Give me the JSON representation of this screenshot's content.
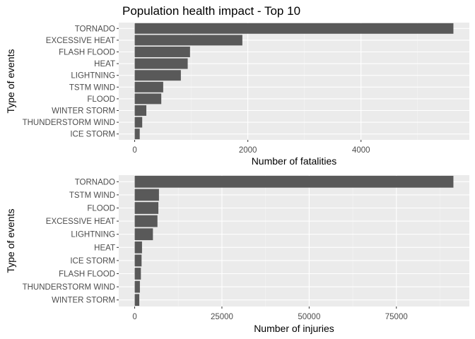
{
  "title": "Population health impact - Top 10",
  "chart_data": [
    {
      "type": "bar",
      "orientation": "horizontal",
      "categories": [
        "TORNADO",
        "EXCESSIVE HEAT",
        "FLASH FLOOD",
        "HEAT",
        "LIGHTNING",
        "TSTM WIND",
        "FLOOD",
        "WINTER STORM",
        "THUNDERSTORM WIND",
        "ICE STORM"
      ],
      "values": [
        5633,
        1903,
        978,
        937,
        816,
        504,
        470,
        206,
        133,
        89
      ],
      "xlabel": "Number of fatalities",
      "ylabel": "Type of events",
      "xticks": [
        0,
        2000,
        4000
      ],
      "xlim": [
        0,
        5633
      ],
      "grid": true
    },
    {
      "type": "bar",
      "orientation": "horizontal",
      "categories": [
        "TORNADO",
        "TSTM WIND",
        "FLOOD",
        "EXCESSIVE HEAT",
        "LIGHTNING",
        "HEAT",
        "ICE STORM",
        "FLASH FLOOD",
        "THUNDERSTORM WIND",
        "WINTER STORM"
      ],
      "values": [
        91346,
        6957,
        6789,
        6525,
        5230,
        2100,
        1975,
        1777,
        1488,
        1321
      ],
      "xlabel": "Number of injuries",
      "ylabel": "Type of events",
      "xticks": [
        0,
        25000,
        50000,
        75000
      ],
      "xlim": [
        0,
        91346
      ],
      "grid": true
    }
  ]
}
